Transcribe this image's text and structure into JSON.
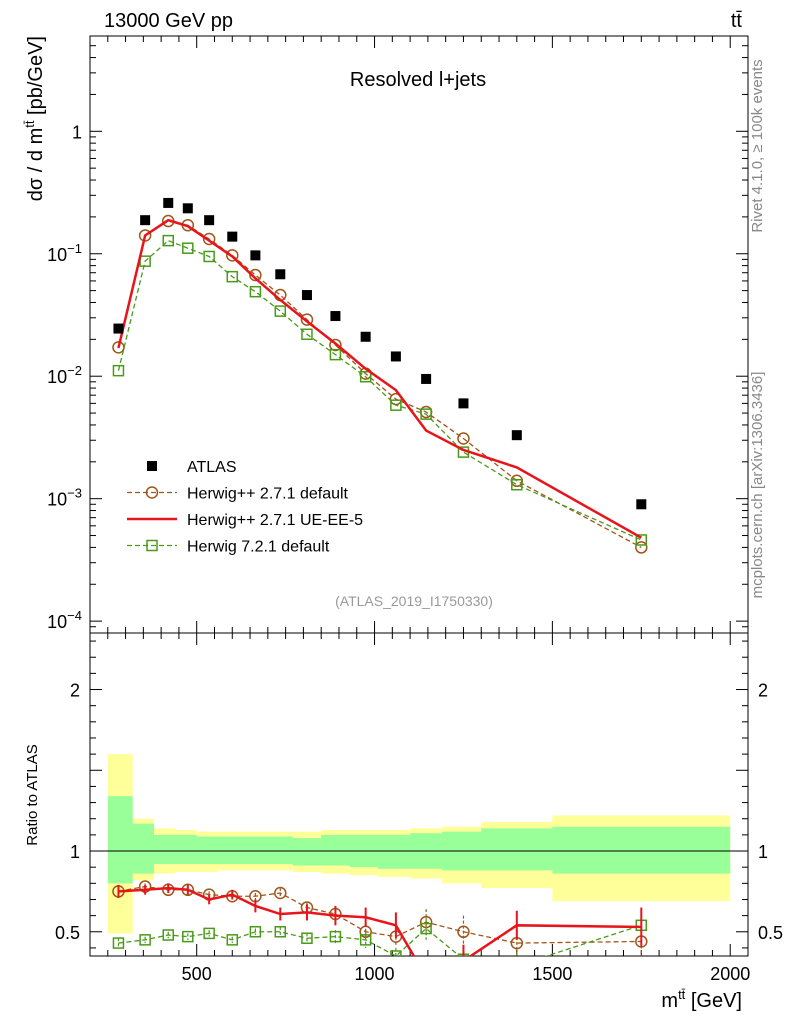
{
  "header": {
    "energy_label": "13000 GeV pp",
    "process_label": "tt̄"
  },
  "side_labels": {
    "rivet": "Rivet 4.1.0, ≥ 100k events",
    "mcplots": "mcplots.cern.ch [arXiv:1306.3436]"
  },
  "chart_data": [
    {
      "type": "scatter",
      "title": "Resolved l+jets",
      "analysis_label": "(ATLAS_2019_I1750330)",
      "xlabel": "m^{tt̄} [GeV]",
      "ylabel": "dσ / d m^{tt̄} [pb/GeV]",
      "yscale": "log",
      "xlim": [
        200,
        2050
      ],
      "ylim": [
        8e-05,
        6
      ],
      "y_ticks": [
        {
          "value": 1,
          "label": "1"
        },
        {
          "value": 0.1,
          "label": "10^-1"
        },
        {
          "value": 0.01,
          "label": "10^-2"
        },
        {
          "value": 0.001,
          "label": "10^-3"
        },
        {
          "value": 0.0001,
          "label": "10^-4"
        }
      ],
      "legend_position": "lower-left",
      "series": [
        {
          "name": "ATLAS",
          "color": "#000000",
          "marker": "square-filled",
          "line": "none",
          "x": [
            280,
            355,
            420,
            475,
            535,
            600,
            665,
            735,
            810,
            890,
            975,
            1060,
            1145,
            1250,
            1400,
            1750
          ],
          "y": [
            0.0245,
            0.188,
            0.26,
            0.235,
            0.188,
            0.138,
            0.097,
            0.068,
            0.046,
            0.031,
            0.021,
            0.0145,
            0.0095,
            0.006,
            0.0033,
            0.0009
          ]
        },
        {
          "name": "Herwig++ 2.7.1 default",
          "color": "#a0551a",
          "marker": "circle-open",
          "line": "dashed",
          "x": [
            280,
            355,
            420,
            475,
            535,
            600,
            665,
            735,
            810,
            890,
            975,
            1060,
            1145,
            1250,
            1400,
            1750
          ],
          "y": [
            0.0172,
            0.141,
            0.185,
            0.171,
            0.132,
            0.097,
            0.067,
            0.046,
            0.029,
            0.018,
            0.0105,
            0.0065,
            0.0051,
            0.0031,
            0.0014,
            0.0004
          ]
        },
        {
          "name": "Herwig++ 2.7.1 UE-EE-5",
          "color": "#e8141b",
          "marker": "none",
          "line": "solid",
          "x": [
            280,
            355,
            420,
            475,
            535,
            600,
            665,
            735,
            810,
            890,
            975,
            1060,
            1145,
            1250,
            1400,
            1750
          ],
          "y": [
            0.017,
            0.141,
            0.188,
            0.168,
            0.128,
            0.095,
            0.063,
            0.042,
            0.028,
            0.0185,
            0.0115,
            0.0077,
            0.0036,
            0.0025,
            0.0018,
            0.00048
          ]
        },
        {
          "name": "Herwig 7.2.1 default",
          "color": "#4a9a1a",
          "marker": "square-open",
          "line": "dashed",
          "x": [
            280,
            355,
            420,
            475,
            535,
            600,
            665,
            735,
            810,
            890,
            975,
            1060,
            1145,
            1250,
            1400,
            1750
          ],
          "y": [
            0.0111,
            0.087,
            0.128,
            0.111,
            0.095,
            0.065,
            0.049,
            0.034,
            0.022,
            0.015,
            0.0099,
            0.0058,
            0.0049,
            0.0024,
            0.0013,
            0.00046
          ]
        }
      ]
    },
    {
      "type": "line",
      "ylabel": "Ratio to ATLAS",
      "xlabel": "m^{tt̄} [GeV]",
      "xlim": [
        200,
        2050
      ],
      "ylim": [
        0.35,
        2.35
      ],
      "x_ticks": [
        500,
        1000,
        1500,
        2000
      ],
      "y_ticks": [
        0.5,
        1,
        2
      ],
      "bands": {
        "edges": [
          250,
          320,
          380,
          440,
          500,
          560,
          630,
          700,
          770,
          850,
          930,
          1010,
          1100,
          1190,
          1300,
          1500,
          2000
        ],
        "stat_syst_high": [
          1.6,
          1.2,
          1.14,
          1.13,
          1.12,
          1.12,
          1.12,
          1.12,
          1.12,
          1.13,
          1.13,
          1.13,
          1.14,
          1.15,
          1.18,
          1.22,
          1.22
        ],
        "stat_syst_low": [
          0.49,
          0.82,
          0.86,
          0.87,
          0.87,
          0.88,
          0.88,
          0.88,
          0.87,
          0.86,
          0.85,
          0.84,
          0.83,
          0.8,
          0.77,
          0.69,
          0.69
        ],
        "stat_high": [
          1.34,
          1.17,
          1.1,
          1.1,
          1.09,
          1.09,
          1.09,
          1.09,
          1.08,
          1.1,
          1.1,
          1.1,
          1.11,
          1.12,
          1.14,
          1.15,
          1.15
        ],
        "stat_low": [
          0.8,
          0.86,
          0.92,
          0.92,
          0.92,
          0.92,
          0.92,
          0.92,
          0.91,
          0.91,
          0.9,
          0.89,
          0.89,
          0.88,
          0.88,
          0.86,
          0.86
        ],
        "stat_color": "#99ff99",
        "stat_syst_color": "#ffff99"
      },
      "reference_line": 1,
      "series": [
        {
          "name": "Herwig++ 2.7.1 default",
          "color": "#a0551a",
          "marker": "circle-open",
          "line": "dashed",
          "x": [
            280,
            355,
            420,
            475,
            535,
            600,
            665,
            735,
            810,
            890,
            975,
            1060,
            1145,
            1250,
            1400,
            1750
          ],
          "y": [
            0.75,
            0.78,
            0.76,
            0.76,
            0.73,
            0.72,
            0.72,
            0.74,
            0.65,
            0.61,
            0.5,
            0.47,
            0.56,
            0.5,
            0.43,
            0.44
          ],
          "err": [
            0.03,
            0.02,
            0.02,
            0.02,
            0.02,
            0.02,
            0.02,
            0.03,
            0.03,
            0.04,
            0.05,
            0.06,
            0.08,
            0.1,
            0.1,
            0.1
          ]
        },
        {
          "name": "Herwig++ 2.7.1 UE-EE-5",
          "color": "#e8141b",
          "marker": "none",
          "line": "solid",
          "x": [
            280,
            355,
            420,
            475,
            535,
            600,
            665,
            735,
            810,
            890,
            975,
            1060,
            1145,
            1250,
            1400,
            1750
          ],
          "y": [
            0.75,
            0.76,
            0.77,
            0.76,
            0.7,
            0.73,
            0.66,
            0.61,
            0.62,
            0.6,
            0.59,
            0.54,
            0.22,
            0.32,
            0.54,
            0.53
          ],
          "err": [
            0.04,
            0.03,
            0.03,
            0.03,
            0.03,
            0.03,
            0.04,
            0.04,
            0.05,
            0.06,
            0.06,
            0.08,
            0.1,
            0.1,
            0.09,
            0.12
          ]
        },
        {
          "name": "Herwig 7.2.1 default",
          "color": "#4a9a1a",
          "marker": "square-open",
          "line": "dashed",
          "x": [
            280,
            355,
            420,
            475,
            535,
            600,
            665,
            735,
            810,
            890,
            975,
            1060,
            1145,
            1250,
            1400,
            1750
          ],
          "y": [
            0.43,
            0.45,
            0.48,
            0.47,
            0.49,
            0.45,
            0.5,
            0.5,
            0.46,
            0.47,
            0.45,
            0.35,
            0.52,
            0.33,
            0.29,
            0.54
          ],
          "err": [
            0.03,
            0.02,
            0.02,
            0.02,
            0.02,
            0.02,
            0.02,
            0.03,
            0.03,
            0.04,
            0.05,
            0.05,
            0.07,
            0.08,
            0.08,
            0.1
          ]
        }
      ]
    }
  ]
}
